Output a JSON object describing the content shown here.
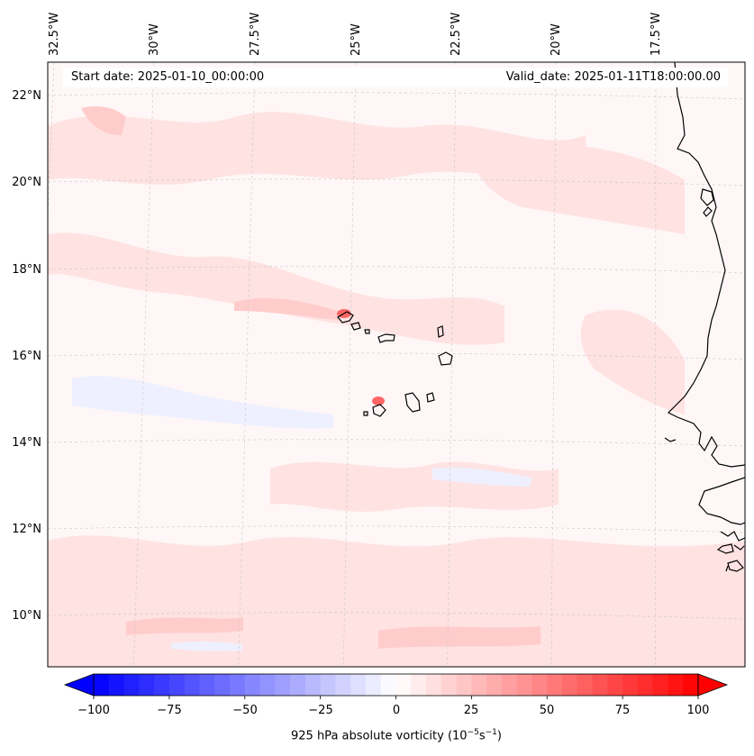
{
  "map": {
    "start_date_text": "Start date: 2025-01-10_00:00:00",
    "valid_date_text": "Valid_date: 2025-01-11T18:00:00.00",
    "lon_labels": [
      "32.5°W",
      "30°W",
      "27.5°W",
      "25°W",
      "22.5°W",
      "20°W",
      "17.5°W"
    ],
    "lat_labels": [
      "22°N",
      "20°N",
      "18°N",
      "16°N",
      "14°N",
      "12°N",
      "10°N"
    ],
    "field_colors": {
      "background": "#fff7f7",
      "weak_positive": "#ffe2e2",
      "moderate_positive": "#ffcccc",
      "strong_positive": "#ff6666",
      "weak_negative": "#eef0ff"
    },
    "coastline_color": "#000000",
    "gridline_color": "#c8c8c8"
  },
  "colorbar": {
    "label_prefix": "925 hPa absolute vorticity (10",
    "label_exp1": "−5",
    "label_mid": "s",
    "label_exp2": "−1",
    "label_suffix": ")",
    "min": -100,
    "max": 100,
    "ticks": [
      "−100",
      "−75",
      "−50",
      "−25",
      "0",
      "25",
      "50",
      "75",
      "100"
    ],
    "negative_color": "#0000ff",
    "positive_color": "#ff0000",
    "center_color": "#ffffff"
  }
}
